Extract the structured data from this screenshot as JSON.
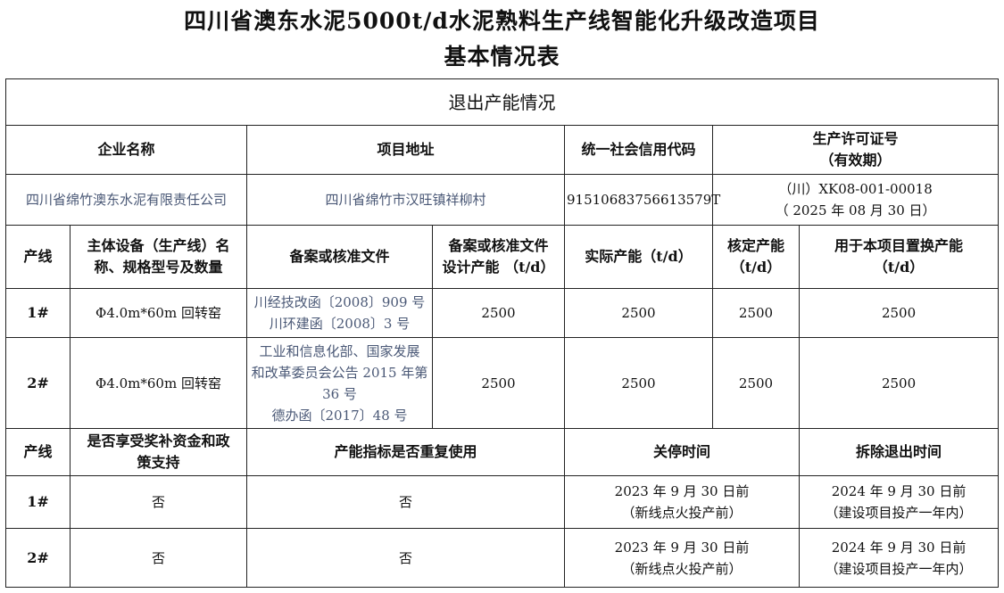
{
  "title": {
    "line1": "四川省澳东水泥5000t/d水泥熟料生产线智能化升级改造项目",
    "line2": "基本情况表"
  },
  "section": "退出产能情况",
  "company_headers": {
    "name": "企业名称",
    "address": "项目地址",
    "credit_code": "统一社会信用代码",
    "license": [
      "生产许可证号",
      "（有效期）"
    ]
  },
  "company": {
    "name": "四川省绵竹澳东水泥有限责任公司",
    "address": "四川省绵竹市汉旺镇祥柳村",
    "credit_code": "91510683756613579T",
    "license": [
      "（川）XK08-001-00018",
      "（ 2025 年 08 月 30 日）"
    ]
  },
  "capacity_headers": {
    "line": "产线",
    "equipment": [
      "主体设备（生产线）名",
      "称、规格型号及数量"
    ],
    "filing": "备案或核准文件",
    "design": [
      "备案或核准文件",
      "设计产能 （t/d）"
    ],
    "actual": "实际产能（t/d）",
    "approved": [
      "核定产能",
      "（t/d）"
    ],
    "replace": [
      "用于本项目置换产能",
      "（t/d）"
    ]
  },
  "capacity_rows": [
    {
      "line": "1#",
      "equipment": "Φ4.0m*60m 回转窑",
      "filing": [
        "川经技改函〔2008〕909 号",
        "川环建函〔2008〕3 号"
      ],
      "design": "2500",
      "actual": "2500",
      "approved": "2500",
      "replace": "2500"
    },
    {
      "line": "2#",
      "equipment": "Φ4.0m*60m 回转窑",
      "filing": [
        "工业和信息化部、国家发展",
        "和改革委员会公告 2015 年第",
        "36 号",
        "德办函〔2017〕48 号"
      ],
      "design": "2500",
      "actual": "2500",
      "approved": "2500",
      "replace": "2500"
    }
  ],
  "exit_headers": {
    "line": "产线",
    "subsidy": [
      "是否享受奖补资金和政",
      "策支持"
    ],
    "reuse": "产能指标是否重复使用",
    "shutdown": "关停时间",
    "demolish": "拆除退出时间"
  },
  "exit_rows": [
    {
      "line": "1#",
      "subsidy": "否",
      "reuse": "否",
      "shutdown": [
        "2023 年 9 月 30 日前",
        "（新线点火投产前）"
      ],
      "demolish": [
        "2024 年 9 月 30 日前",
        "（建设项目投产一年内）"
      ]
    },
    {
      "line": "2#",
      "subsidy": "否",
      "reuse": "否",
      "shutdown": [
        "2023 年 9 月 30 日前",
        "（新线点火投产前）"
      ],
      "demolish": [
        "2024 年 9 月 30 日前",
        "（建设项目投产一年内）"
      ]
    }
  ]
}
